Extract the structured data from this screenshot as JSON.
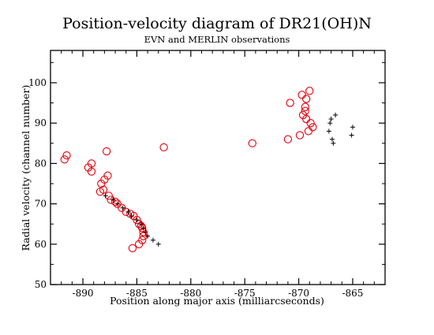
{
  "chart_data": {
    "type": "scatter",
    "title": "Position-velocity diagram of DR21(OH)N",
    "subtitle": "EVN and MERLIN observations",
    "xlabel": "Position along major axis (milliarcseconds)",
    "ylabel": "Radial velocity (channel number)",
    "xlim": [
      -893,
      -862
    ],
    "ylim": [
      50,
      108
    ],
    "x_ticks": [
      -890,
      -885,
      -880,
      -875,
      -870,
      -865
    ],
    "x_tick_labels": [
      "-890",
      "-885",
      "-880",
      "-875",
      "-870",
      "-865"
    ],
    "y_ticks": [
      50,
      60,
      70,
      80,
      90,
      100
    ],
    "y_tick_labels": [
      "50",
      "60",
      "70",
      "80",
      "90",
      "100"
    ],
    "x_minor_step": 1,
    "y_minor_step": 5,
    "grid": false,
    "legend": "none",
    "series": [
      {
        "marker": "circle",
        "color": "#e8000b",
        "points": [
          [
            -891.7,
            81
          ],
          [
            -891.5,
            82
          ],
          [
            -889.5,
            79
          ],
          [
            -889.2,
            80
          ],
          [
            -889.2,
            78
          ],
          [
            -888.4,
            73
          ],
          [
            -888.3,
            75
          ],
          [
            -888.1,
            73.5
          ],
          [
            -888.0,
            76
          ],
          [
            -887.8,
            83
          ],
          [
            -887.7,
            77
          ],
          [
            -887.6,
            72
          ],
          [
            -887.4,
            71
          ],
          [
            -887.0,
            70.5
          ],
          [
            -886.8,
            70
          ],
          [
            -886.4,
            69
          ],
          [
            -886.0,
            68
          ],
          [
            -885.6,
            67.5
          ],
          [
            -885.3,
            67
          ],
          [
            -885.0,
            66
          ],
          [
            -884.8,
            65
          ],
          [
            -884.6,
            64.5
          ],
          [
            -884.5,
            64
          ],
          [
            -884.4,
            63
          ],
          [
            -884.4,
            62
          ],
          [
            -884.5,
            61
          ],
          [
            -884.8,
            60
          ],
          [
            -885.4,
            59
          ],
          [
            -882.5,
            84
          ],
          [
            -874.3,
            85
          ],
          [
            -871.0,
            86
          ],
          [
            -870.8,
            95
          ],
          [
            -869.9,
            87
          ],
          [
            -869.7,
            97
          ],
          [
            -869.6,
            92
          ],
          [
            -869.4,
            94
          ],
          [
            -869.4,
            93
          ],
          [
            -869.3,
            91
          ],
          [
            -869.3,
            96
          ],
          [
            -869.0,
            98
          ],
          [
            -869.1,
            88
          ],
          [
            -868.9,
            90
          ],
          [
            -868.7,
            89
          ]
        ]
      },
      {
        "marker": "plus",
        "color": "#000000",
        "points": [
          [
            -887.9,
            72
          ],
          [
            -887.2,
            71
          ],
          [
            -886.8,
            70
          ],
          [
            -886.3,
            69
          ],
          [
            -885.8,
            68
          ],
          [
            -885.5,
            67
          ],
          [
            -885.0,
            66
          ],
          [
            -884.6,
            65
          ],
          [
            -884.4,
            64
          ],
          [
            -884.2,
            63
          ],
          [
            -884.0,
            62
          ],
          [
            -883.5,
            61
          ],
          [
            -883.0,
            60
          ],
          [
            -867.2,
            88
          ],
          [
            -867.1,
            90
          ],
          [
            -867.0,
            91
          ],
          [
            -866.9,
            86
          ],
          [
            -866.8,
            85
          ],
          [
            -866.6,
            92
          ],
          [
            -865.0,
            89
          ],
          [
            -865.1,
            87
          ]
        ]
      }
    ]
  }
}
